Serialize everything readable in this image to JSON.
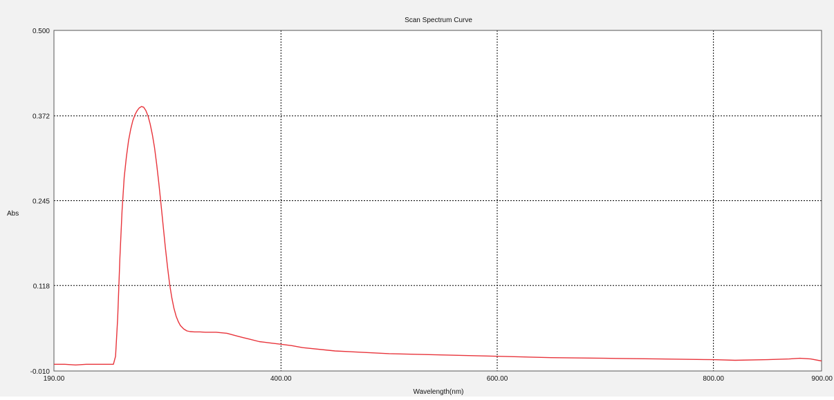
{
  "chart_data": {
    "type": "line",
    "title": "Scan Spectrum Curve",
    "xlabel": "Wavelength(nm)",
    "ylabel": "Abs",
    "xlim": [
      190,
      900
    ],
    "ylim": [
      -0.01,
      0.5
    ],
    "xticks": [
      190,
      400,
      600,
      800,
      900
    ],
    "xtick_labels": [
      "190.00",
      "400.00",
      "600.00",
      "800.00",
      "900.00"
    ],
    "yticks": [
      -0.01,
      0.118,
      0.245,
      0.372,
      0.5
    ],
    "ytick_labels": [
      "-0.010",
      "0.118",
      "0.245",
      "0.372",
      "0.500"
    ],
    "grid": true,
    "series": [
      {
        "color": "#e8333a",
        "x": [
          190,
          200,
          210,
          220,
          230,
          240,
          245,
          247,
          249,
          251,
          253,
          255,
          257,
          259,
          261,
          263,
          265,
          267,
          269,
          271,
          273,
          275,
          277,
          279,
          281,
          283,
          285,
          287,
          289,
          291,
          293,
          295,
          297,
          299,
          301,
          303,
          305,
          307,
          310,
          313,
          316,
          320,
          325,
          330,
          340,
          350,
          360,
          365,
          370,
          380,
          390,
          400,
          410,
          420,
          450,
          500,
          550,
          600,
          650,
          700,
          750,
          800,
          820,
          850,
          870,
          880,
          890,
          900
        ],
        "y": [
          0.0,
          0.0,
          -0.001,
          0.0,
          0.0,
          0.0,
          0.0,
          0.012,
          0.07,
          0.16,
          0.23,
          0.28,
          0.31,
          0.335,
          0.352,
          0.365,
          0.374,
          0.38,
          0.384,
          0.386,
          0.385,
          0.38,
          0.372,
          0.36,
          0.344,
          0.325,
          0.3,
          0.272,
          0.24,
          0.208,
          0.176,
          0.146,
          0.12,
          0.1,
          0.084,
          0.072,
          0.064,
          0.058,
          0.053,
          0.05,
          0.049,
          0.0485,
          0.0485,
          0.048,
          0.048,
          0.0465,
          0.042,
          0.04,
          0.038,
          0.034,
          0.032,
          0.03,
          0.028,
          0.025,
          0.02,
          0.016,
          0.014,
          0.012,
          0.01,
          0.009,
          0.008,
          0.007,
          0.006,
          0.007,
          0.008,
          0.009,
          0.008,
          0.005
        ]
      }
    ]
  }
}
